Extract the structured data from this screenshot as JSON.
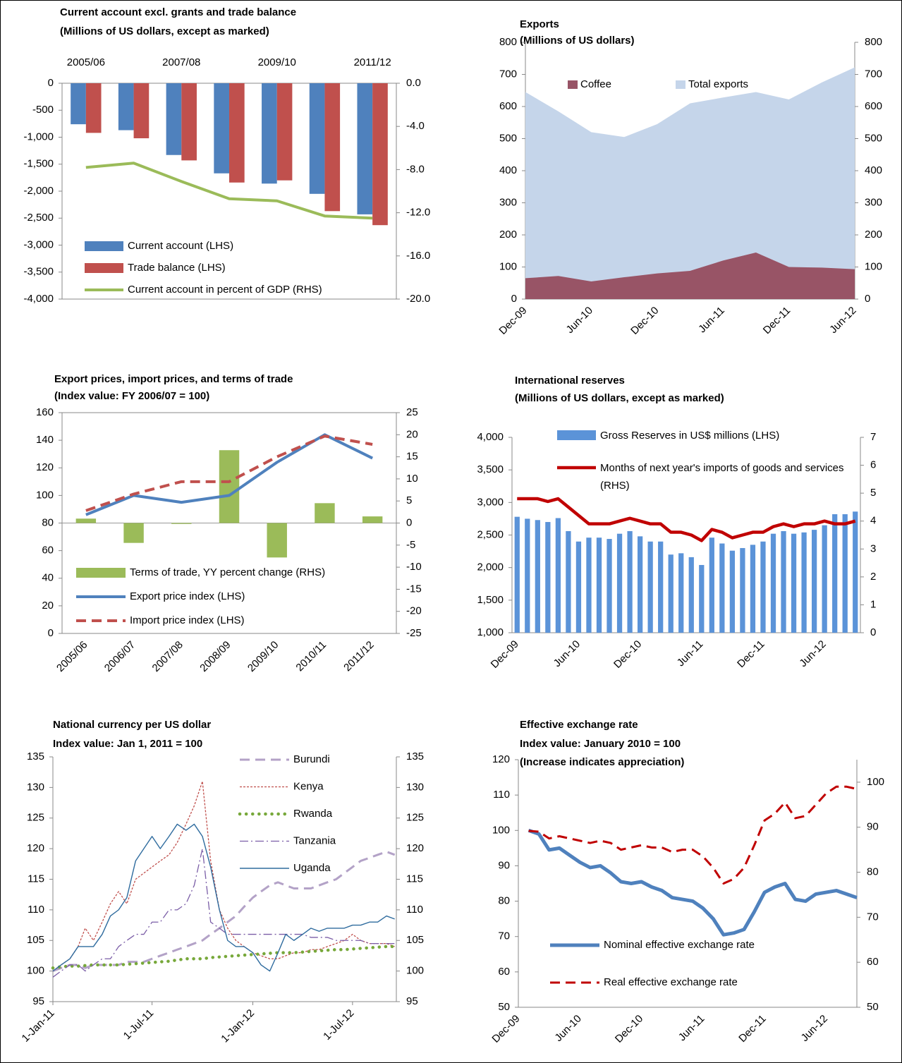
{
  "chart_data": [
    {
      "type": "combo",
      "title": [
        "Current account excl. grants  and trade balance",
        "(Millions of US dollars, except as marked)"
      ],
      "categories": [
        "2005/06",
        null,
        "2007/08",
        null,
        "2009/10",
        null,
        "2011/12"
      ],
      "series": [
        {
          "name": "Current account (LHS)",
          "mark": "bar",
          "color": "#4f81bd",
          "values": [
            -760,
            -870,
            -1330,
            -1670,
            -1860,
            -2050,
            -2430
          ]
        },
        {
          "name": "Trade balance (LHS)",
          "mark": "bar",
          "color": "#c0504d",
          "values": [
            -920,
            -1020,
            -1430,
            -1840,
            -1800,
            -2370,
            -2630
          ]
        },
        {
          "name": "Current account in percent of GDP (RHS)",
          "mark": "line",
          "axis": "y2",
          "style": "solid",
          "color": "#9bbb59",
          "values": [
            -7.8,
            -7.4,
            -9.1,
            -10.7,
            -10.9,
            -12.3,
            -12.5
          ]
        }
      ],
      "ylim": [
        -4000,
        0
      ],
      "yticks": [
        0,
        -500,
        {
          "value": -1000,
          "label": "-1,000"
        },
        {
          "value": -1500,
          "label": "-1,500"
        },
        {
          "value": -2000,
          "label": "-2,000"
        },
        {
          "value": -2500,
          "label": "-2,500"
        },
        {
          "value": -3000,
          "label": "-3,000"
        },
        {
          "value": -3500,
          "label": "-3,500"
        },
        {
          "value": -4000,
          "label": "-4,000"
        }
      ],
      "y2lim": [
        -20,
        0
      ],
      "y2ticks": [
        {
          "value": 0,
          "label": "0.0"
        },
        {
          "value": -4,
          "label": "-4.0"
        },
        {
          "value": -8,
          "label": "-8.0"
        },
        {
          "value": -12,
          "label": "-12.0"
        },
        {
          "value": -16,
          "label": "-16.0"
        },
        {
          "value": -20,
          "label": "-20.0"
        }
      ]
    },
    {
      "type": "area",
      "title": [
        "Exports",
        "(Millions of US dollars)"
      ],
      "categories": [
        "Dec-09",
        null,
        "Jun-10",
        null,
        "Dec-10",
        null,
        "Jun-11",
        null,
        "Dec-11",
        null,
        "Jun-12"
      ],
      "series": [
        {
          "name": "Coffee",
          "mark": "area",
          "color": "#985466",
          "values": [
            65,
            72,
            55,
            68,
            80,
            88,
            120,
            145,
            100,
            98,
            93
          ]
        },
        {
          "name": "Total exports",
          "mark": "area",
          "color": "#c5d5ea",
          "values": [
            645,
            585,
            520,
            505,
            545,
            610,
            628,
            645,
            622,
            675,
            722
          ]
        }
      ],
      "ylim": [
        0,
        800
      ],
      "yticks": [
        0,
        100,
        200,
        300,
        400,
        500,
        600,
        700,
        800
      ],
      "y2lim": [
        0,
        800
      ],
      "y2ticks": [
        0,
        100,
        200,
        300,
        400,
        500,
        600,
        700,
        800
      ]
    },
    {
      "type": "combo",
      "title": [
        "Export prices, import prices, and terms of trade",
        "(Index value: FY 2006/07 = 100)"
      ],
      "categories": [
        "2005/06",
        "2006/07",
        "2007/08",
        "2008/09",
        "2009/10",
        "2010/11",
        "2011/12"
      ],
      "series": [
        {
          "name": "Terms of trade, YY percent change (RHS)",
          "mark": "bar",
          "axis": "y2",
          "color": "#9bbb59",
          "values": [
            1,
            -4.5,
            -0.2,
            16.5,
            -7.8,
            4.5,
            1.5
          ]
        },
        {
          "name": "Export price index (LHS)",
          "mark": "line",
          "style": "solid",
          "color": "#4f81bd",
          "values": [
            86,
            100,
            95,
            100,
            124,
            144,
            127
          ]
        },
        {
          "name": "Import price index (LHS)",
          "mark": "line",
          "style": "dashed",
          "color": "#c0504d",
          "values": [
            89,
            101,
            110,
            110,
            128,
            143,
            137
          ]
        }
      ],
      "ylim": [
        0,
        160
      ],
      "yticks": [
        0,
        20,
        40,
        60,
        80,
        100,
        120,
        140,
        160
      ],
      "y2lim": [
        -25,
        25
      ],
      "y2ticks": [
        -25,
        -20,
        -15,
        -10,
        -5,
        0,
        5,
        10,
        15,
        20,
        25
      ]
    },
    {
      "type": "combo",
      "title": [
        "International reserves",
        "(Millions of US dollars, except as marked)"
      ],
      "categories": [
        "Dec-09",
        null,
        null,
        null,
        null,
        null,
        "Jun-10",
        null,
        null,
        null,
        null,
        null,
        "Dec-10",
        null,
        null,
        null,
        null,
        null,
        "Jun-11",
        null,
        null,
        null,
        null,
        null,
        "Dec-11",
        null,
        null,
        null,
        null,
        null,
        "Jun-12",
        null,
        null,
        null
      ],
      "series": [
        {
          "name": "Gross Reserves in US$ millions (LHS)",
          "mark": "bar",
          "color": "#5b93d8",
          "values": [
            2780,
            2750,
            2730,
            2700,
            2760,
            2560,
            2400,
            2460,
            2460,
            2440,
            2520,
            2560,
            2480,
            2400,
            2400,
            2200,
            2220,
            2160,
            2040,
            2460,
            2370,
            2260,
            2300,
            2350,
            2400,
            2520,
            2560,
            2520,
            2540,
            2580,
            2650,
            2820,
            2820,
            2860
          ]
        },
        {
          "name": "Months of next year's imports of goods and services (RHS)",
          "mark": "line",
          "axis": "y2",
          "style": "solid",
          "color": "#c00000",
          "values": [
            4.8,
            4.8,
            4.8,
            4.7,
            4.8,
            4.5,
            4.2,
            3.9,
            3.9,
            3.9,
            4.0,
            4.1,
            4.0,
            3.9,
            3.9,
            3.6,
            3.6,
            3.5,
            3.3,
            3.7,
            3.6,
            3.4,
            3.5,
            3.6,
            3.6,
            3.8,
            3.9,
            3.8,
            3.9,
            3.9,
            4.0,
            3.9,
            3.9,
            4.0
          ]
        }
      ],
      "ylim": [
        1000,
        4000
      ],
      "yticks": [
        {
          "value": 1000,
          "label": "1,000"
        },
        {
          "value": 1500,
          "label": "1,500"
        },
        {
          "value": 2000,
          "label": "2,000"
        },
        {
          "value": 2500,
          "label": "2,500"
        },
        {
          "value": 3000,
          "label": "3,000"
        },
        {
          "value": 3500,
          "label": "3,500"
        },
        {
          "value": 4000,
          "label": "4,000"
        }
      ],
      "y2lim": [
        0,
        7
      ],
      "y2ticks": [
        0,
        1,
        2,
        3,
        4,
        5,
        6,
        7
      ]
    },
    {
      "type": "line",
      "title": [
        "National currency per US dollar",
        "Index value: Jan 1, 2011 = 100"
      ],
      "x": [
        "2011-01-01",
        "2011-01-16",
        "2011-02-01",
        "2011-02-16",
        "2011-03-01",
        "2011-03-16",
        "2011-04-01",
        "2011-04-16",
        "2011-05-01",
        "2011-05-16",
        "2011-06-01",
        "2011-06-16",
        "2011-07-01",
        "2011-07-16",
        "2011-08-01",
        "2011-08-16",
        "2011-09-01",
        "2011-09-16",
        "2011-10-01",
        "2011-10-16",
        "2011-11-01",
        "2011-11-16",
        "2011-12-01",
        "2011-12-16",
        "2012-01-01",
        "2012-01-16",
        "2012-02-01",
        "2012-02-16",
        "2012-03-01",
        "2012-03-16",
        "2012-04-01",
        "2012-04-16",
        "2012-05-01",
        "2012-05-16",
        "2012-06-01",
        "2012-06-16",
        "2012-07-01",
        "2012-07-16",
        "2012-08-01",
        "2012-08-16",
        "2012-09-01",
        "2012-09-16"
      ],
      "series": [
        {
          "name": "Burundi",
          "style": "dashed",
          "color": "#b3a2c7",
          "values": [
            100,
            100.5,
            101,
            101,
            100.5,
            101,
            101,
            101,
            101,
            101.5,
            101.5,
            101.5,
            102,
            102.5,
            103,
            103.5,
            104,
            104.5,
            105,
            106,
            107,
            108,
            109,
            110.5,
            112,
            113,
            114,
            114.5,
            114,
            113.5,
            113.5,
            113.5,
            114,
            114.5,
            115,
            116,
            117,
            118,
            118.5,
            119,
            119.5,
            119
          ]
        },
        {
          "name": "Kenya",
          "style": "fine-dashed",
          "color": "#c0504d",
          "values": [
            100,
            101,
            102,
            104,
            107,
            105,
            108,
            111,
            113,
            111,
            115,
            116,
            117,
            118,
            119,
            121,
            124,
            127,
            131,
            118,
            110,
            107,
            105,
            104,
            103,
            102.5,
            102,
            102,
            102.5,
            103,
            103,
            103.5,
            103.5,
            104,
            104.5,
            105,
            106,
            105,
            104.5,
            104.5,
            104.5,
            104
          ]
        },
        {
          "name": "Rwanda",
          "style": "dotted",
          "color": "#77a83a",
          "values": [
            100.5,
            100.7,
            100.8,
            100.8,
            100.9,
            101,
            101,
            101,
            101,
            101.1,
            101.2,
            101.3,
            101.4,
            101.5,
            101.6,
            101.8,
            102,
            102,
            102,
            102.2,
            102.3,
            102.4,
            102.5,
            102.6,
            102.7,
            102.8,
            102.9,
            103,
            103,
            103,
            103.1,
            103.2,
            103.3,
            103.4,
            103.5,
            103.5,
            103.6,
            103.7,
            103.8,
            103.9,
            104,
            104
          ]
        },
        {
          "name": "Tanzania",
          "style": "dash-dot",
          "color": "#7b5ea7",
          "values": [
            99,
            100,
            101,
            101,
            100,
            101,
            102,
            102,
            104,
            105,
            106,
            106,
            108,
            108,
            110,
            110,
            111,
            114,
            120,
            108,
            107,
            106,
            106,
            106,
            106,
            106,
            106,
            106,
            106,
            106,
            106,
            105.5,
            105.5,
            105.5,
            105,
            105,
            105,
            105,
            104.5,
            104.5,
            104.5,
            104.5
          ]
        },
        {
          "name": "Uganda",
          "style": "solid",
          "color": "#2e6b9e",
          "values": [
            100,
            101,
            102,
            104,
            104,
            104,
            106,
            109,
            110,
            112,
            118,
            120,
            122,
            120,
            122,
            124,
            123,
            124,
            122,
            117,
            110,
            105,
            104,
            104,
            103,
            101,
            100,
            103,
            106,
            105,
            106,
            107,
            106.5,
            107,
            107,
            107,
            107.5,
            107.5,
            108,
            108,
            109,
            108.5
          ]
        }
      ],
      "xlim": [
        "2011-01-01",
        "2012-09-19"
      ],
      "xticks": [
        {
          "value": "2011-01-01",
          "label": "1-Jan-11"
        },
        {
          "value": "2011-07-01",
          "label": "1-Jul-11"
        },
        {
          "value": "2012-01-01",
          "label": "1-Jan-12"
        },
        {
          "value": "2012-07-01",
          "label": "1-Jul-12"
        }
      ],
      "ylim": [
        95,
        135
      ],
      "yticks": [
        95,
        100,
        105,
        110,
        115,
        120,
        125,
        130,
        135
      ],
      "y2lim": [
        95,
        135
      ],
      "y2ticks": [
        95,
        100,
        105,
        110,
        115,
        120,
        125,
        130,
        135
      ]
    },
    {
      "type": "line",
      "title": [
        "Effective exchange rate",
        "Index value: January 2010 = 100",
        "(Increase indicates appreciation)"
      ],
      "categories": [
        "Dec-09",
        null,
        null,
        null,
        null,
        null,
        "Jun-10",
        null,
        null,
        null,
        null,
        null,
        "Dec-10",
        null,
        null,
        null,
        null,
        null,
        "Jun-11",
        null,
        null,
        null,
        null,
        null,
        "Dec-11",
        null,
        null,
        null,
        null,
        null,
        "Jun-12",
        null,
        null,
        null
      ],
      "series": [
        {
          "name": "Nominal effective exchange rate",
          "style": "solid",
          "color": "#4f81bd",
          "values": [
            null,
            100,
            99,
            94.5,
            95,
            93,
            91,
            89.5,
            90,
            88,
            85.5,
            85,
            85.5,
            84,
            83,
            81,
            80.5,
            80,
            78,
            75,
            70.5,
            71,
            72,
            77,
            82.5,
            84,
            85,
            80.5,
            80,
            82,
            82.5,
            83,
            82,
            81
          ]
        },
        {
          "name": "Real effective exchange rate",
          "style": "dashed",
          "axis": "y2",
          "color": "#c00000",
          "values": [
            null,
            89.2,
            89,
            87.5,
            88,
            87.5,
            87,
            86.5,
            87,
            86.5,
            85,
            85.5,
            86,
            85.5,
            85.5,
            84.5,
            85,
            85,
            83.5,
            81,
            77.5,
            78.5,
            81,
            86,
            91.5,
            93,
            95.5,
            92,
            92.5,
            95,
            97.5,
            99,
            99,
            98.5
          ]
        }
      ],
      "ylim": [
        50,
        120
      ],
      "yticks": [
        50,
        60,
        70,
        80,
        90,
        100,
        110,
        120
      ],
      "y2lim": [
        50,
        105
      ],
      "y2ticks": [
        50,
        60,
        70,
        80,
        90,
        100
      ]
    }
  ]
}
